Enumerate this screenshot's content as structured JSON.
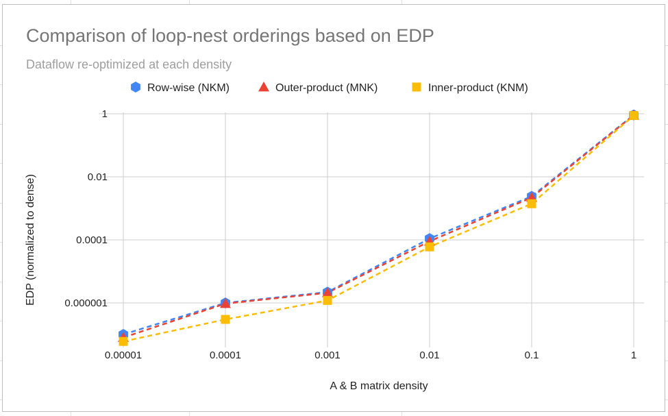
{
  "chart_data": {
    "type": "line",
    "title": "Comparison of loop-nest orderings based on EDP",
    "subtitle": "Dataflow re-optimized at each density",
    "xlabel": "A & B matrix density",
    "ylabel": "EDP (normalized to dense)",
    "x_scale": "log",
    "y_scale": "log",
    "x": [
      1e-05,
      0.0001,
      0.001,
      0.01,
      0.1,
      1
    ],
    "x_tick_labels": [
      "0.00001",
      "0.0001",
      "0.001",
      "0.01",
      "0.1",
      "1"
    ],
    "y_ticks": [
      1e-06,
      0.0001,
      0.01,
      1
    ],
    "y_tick_labels": [
      "0.000001",
      "0.0001",
      "0.01",
      "1"
    ],
    "ylim": [
      1e-07,
      2
    ],
    "grid": true,
    "legend_position": "top",
    "series": [
      {
        "name": "Row-wise (NKM)",
        "color": "#4285F4",
        "marker": "hexagon",
        "line": "dashed",
        "values": [
          1e-07,
          1e-06,
          2.2e-06,
          0.00011,
          0.0024,
          0.92
        ]
      },
      {
        "name": "Outer-product (MNK)",
        "color": "#EA4335",
        "marker": "triangle",
        "line": "dashed",
        "values": [
          8e-08,
          9.5e-07,
          2.1e-06,
          9e-05,
          0.0022,
          0.9
        ]
      },
      {
        "name": "Inner-product (KNM)",
        "color": "#FBBC04",
        "marker": "square",
        "line": "dashed",
        "values": [
          6e-08,
          3e-07,
          1.2e-06,
          6e-05,
          0.0014,
          0.88
        ]
      }
    ]
  }
}
